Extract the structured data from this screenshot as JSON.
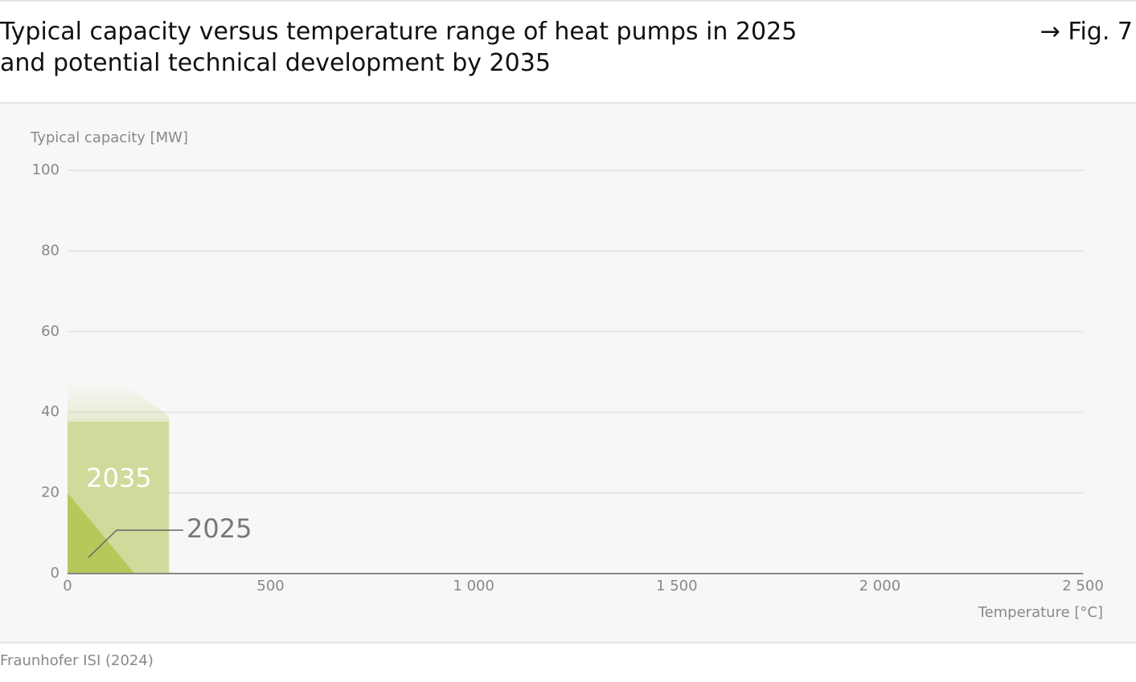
{
  "chart_data": {
    "type": "area",
    "title": "Typical capacity versus temperature range of heat pumps in 2025 and potential technical development by 2035",
    "figure_label": "→ Fig. 7",
    "source": "Fraunhofer ISI (2024)",
    "y_label": "Typical capacity [MW]",
    "x_label": "Temperature [°C]",
    "xlim": [
      0,
      2500
    ],
    "xticks": [
      0,
      500,
      {
        "value": 1000,
        "label": "1 000"
      },
      {
        "value": 1500,
        "label": "1 500"
      },
      {
        "value": 2000,
        "label": "2 000"
      },
      {
        "value": 2500,
        "label": "2 500"
      }
    ],
    "ylim": [
      0,
      100
    ],
    "yticks": [
      0,
      20,
      40,
      60,
      80,
      100
    ],
    "grid": true,
    "series": [
      {
        "name": "2035",
        "color": "#d0da9a",
        "x": [
          0,
          0,
          140,
          250,
          250
        ],
        "values": [
          0,
          47,
          47,
          39,
          0
        ]
      },
      {
        "name": "2025",
        "color": "#b5c85a",
        "x": [
          0,
          0,
          165
        ],
        "values": [
          0,
          20,
          0
        ]
      }
    ]
  }
}
